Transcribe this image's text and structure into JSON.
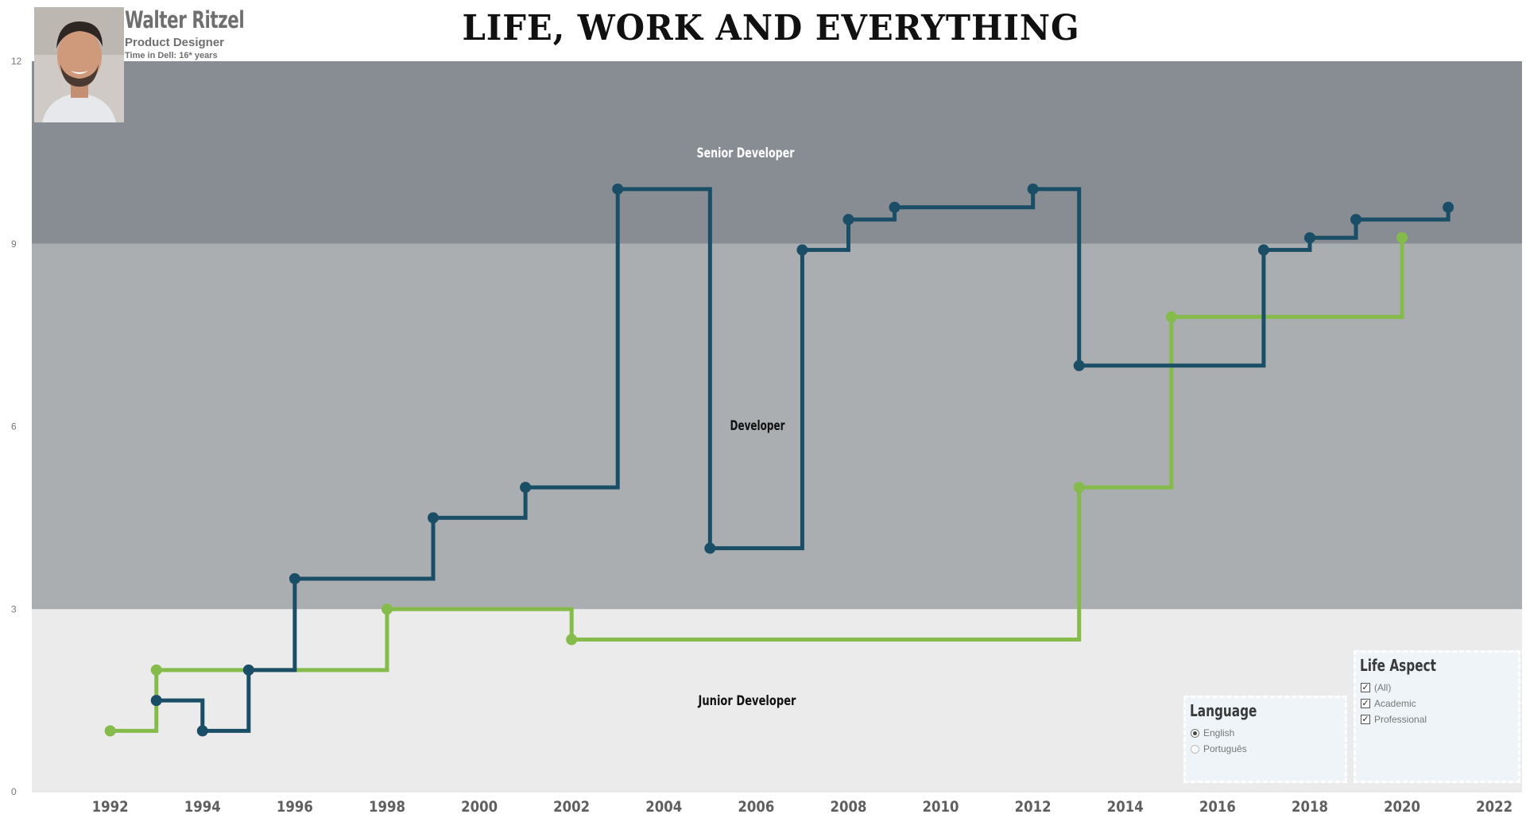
{
  "header": {
    "person_name": "Walter Ritzel",
    "role": "Product Designer",
    "tenure": "Time in Dell: 16* years",
    "title": "LIFE, WORK AND EVERYTHING"
  },
  "language_filter": {
    "title": "Language",
    "options": [
      {
        "label": "English",
        "selected": true
      },
      {
        "label": "Português",
        "selected": false
      }
    ]
  },
  "life_aspect_filter": {
    "title": "Life Aspect",
    "options": [
      {
        "label": "(All)",
        "checked": true
      },
      {
        "label": "Academic",
        "checked": true
      },
      {
        "label": "Professional",
        "checked": true
      }
    ]
  },
  "chart_data": {
    "type": "line",
    "step": true,
    "xlim": [
      1990.3,
      2022.6
    ],
    "ylim": [
      0,
      12
    ],
    "x_ticks": [
      1992,
      1994,
      1996,
      1998,
      2000,
      2002,
      2004,
      2006,
      2008,
      2010,
      2012,
      2014,
      2016,
      2018,
      2020,
      2022
    ],
    "y_ticks": [
      0,
      3,
      6,
      9,
      12
    ],
    "bands": [
      {
        "label": "Junior Developer",
        "from": 0,
        "to": 3,
        "color": "#ebebeb",
        "label_color": "#111111"
      },
      {
        "label": "Developer",
        "from": 3,
        "to": 9,
        "color": "#aaaeb0",
        "label_color": "#111111"
      },
      {
        "label": "Senior Developer",
        "from": 9,
        "to": 12,
        "color": "#878d93",
        "label_color": "#ffffff"
      }
    ],
    "series": [
      {
        "color": "#85bb4b",
        "points": [
          {
            "x": 1992,
            "y": 1.0
          },
          {
            "x": 1993,
            "y": 2.0
          },
          {
            "x": 1998,
            "y": 3.0
          },
          {
            "x": 2002,
            "y": 2.5
          },
          {
            "x": 2013,
            "y": 5.0
          },
          {
            "x": 2015,
            "y": 7.8
          },
          {
            "x": 2020,
            "y": 9.1
          }
        ]
      },
      {
        "color": "#1a4e66",
        "points": [
          {
            "x": 1993,
            "y": 1.5
          },
          {
            "x": 1994,
            "y": 1.0
          },
          {
            "x": 1995,
            "y": 2.0
          },
          {
            "x": 1996,
            "y": 3.5
          },
          {
            "x": 1999,
            "y": 4.5
          },
          {
            "x": 2001,
            "y": 5.0
          },
          {
            "x": 2003,
            "y": 9.9
          },
          {
            "x": 2005,
            "y": 4.0
          },
          {
            "x": 2007,
            "y": 8.9
          },
          {
            "x": 2008,
            "y": 9.4
          },
          {
            "x": 2009,
            "y": 9.6
          },
          {
            "x": 2012,
            "y": 9.9
          },
          {
            "x": 2013,
            "y": 7.0
          },
          {
            "x": 2017,
            "y": 8.9
          },
          {
            "x": 2018,
            "y": 9.1
          },
          {
            "x": 2019,
            "y": 9.4
          },
          {
            "x": 2021,
            "y": 9.6
          }
        ]
      }
    ]
  }
}
